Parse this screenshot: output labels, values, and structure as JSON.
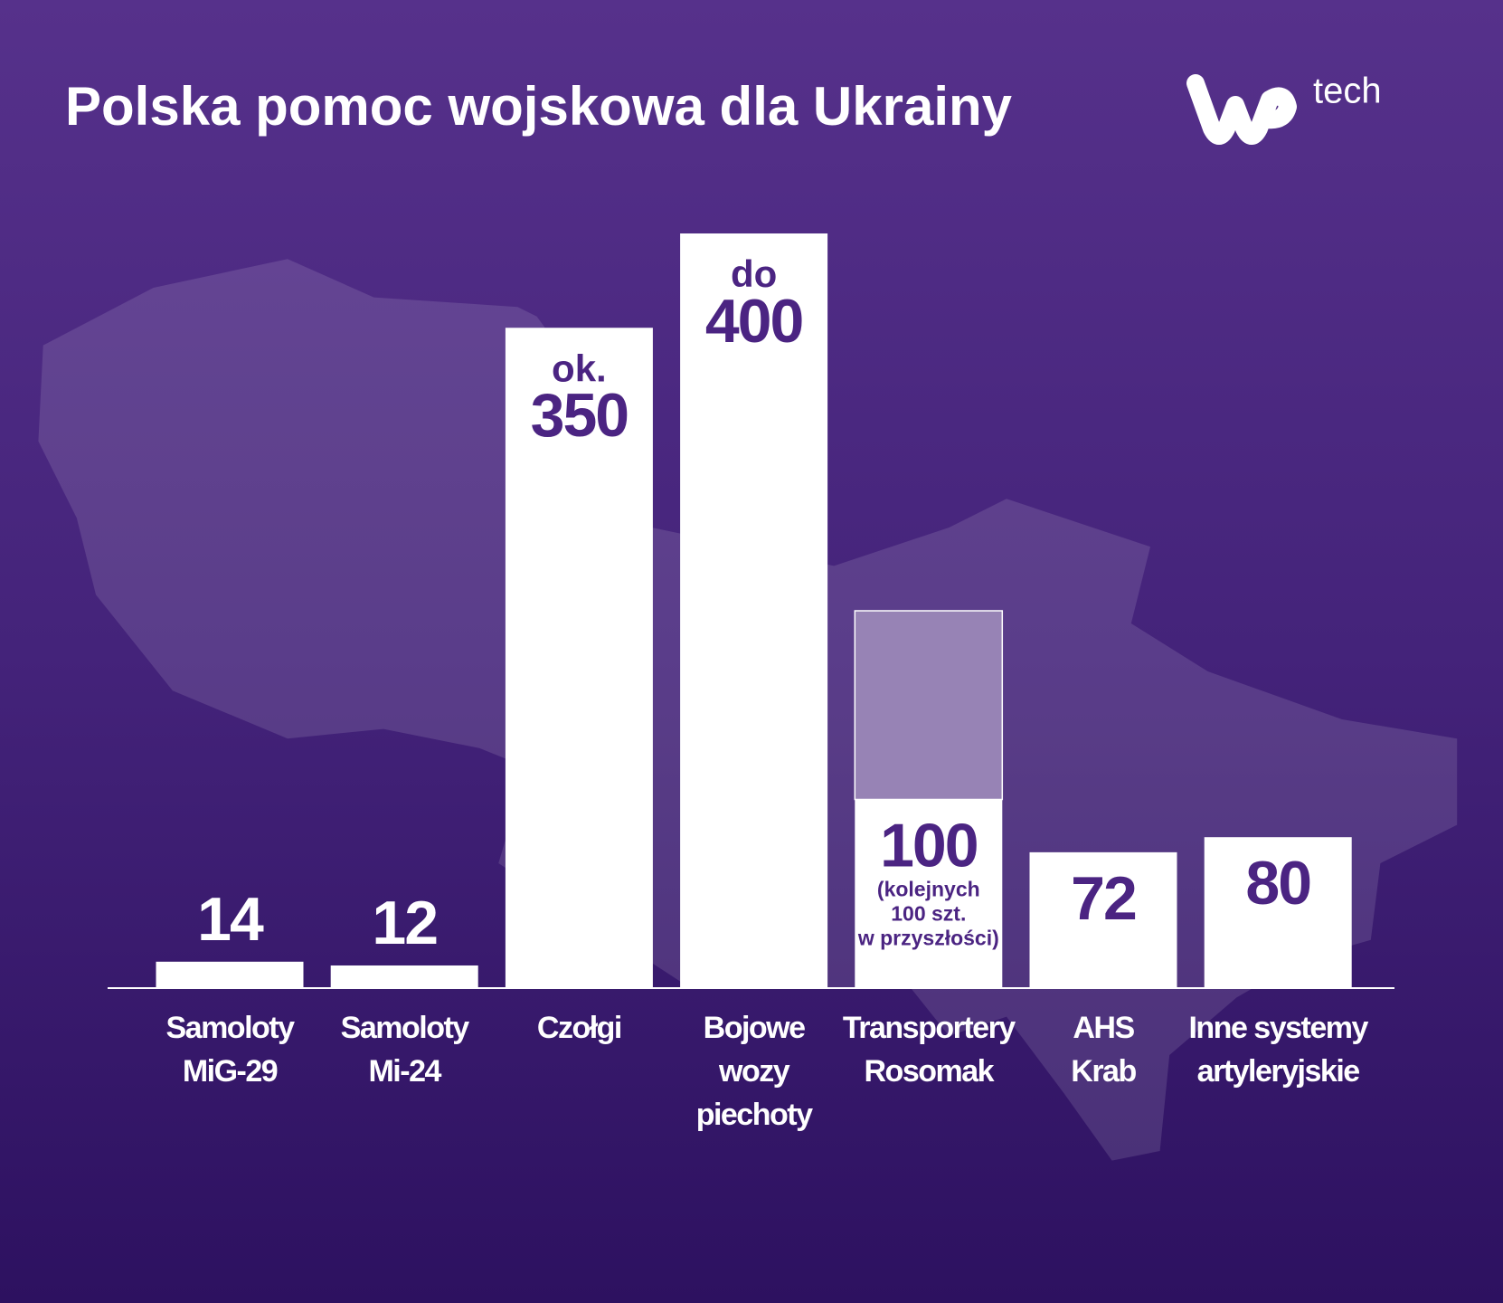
{
  "chart_data": {
    "type": "bar",
    "title": "Polska pomoc wojskowa dla Ukrainy",
    "logo_text": "tech",
    "categories": [
      "Samoloty\nMiG-29",
      "Samoloty\nMi-24",
      "Czołgi",
      "Bojowe\nwozy\npiechoty",
      "Transportery\nRosomak",
      "AHS\nKrab",
      "Inne systemy\nartyleryjskie"
    ],
    "series": [
      {
        "color": "#ffffff",
        "values": [
          14,
          12,
          350,
          400,
          100,
          72,
          80
        ],
        "value_prefix_labels": [
          null,
          null,
          "ok.",
          "do",
          null,
          null,
          null
        ]
      },
      {
        "color": "#9783b5",
        "values": [
          null,
          null,
          null,
          null,
          100,
          null,
          null
        ]
      }
    ],
    "annotation_lines": [
      "(kolejnych",
      "100 szt.",
      "w przyszłości)"
    ],
    "ylim": [
      0,
      400
    ]
  }
}
